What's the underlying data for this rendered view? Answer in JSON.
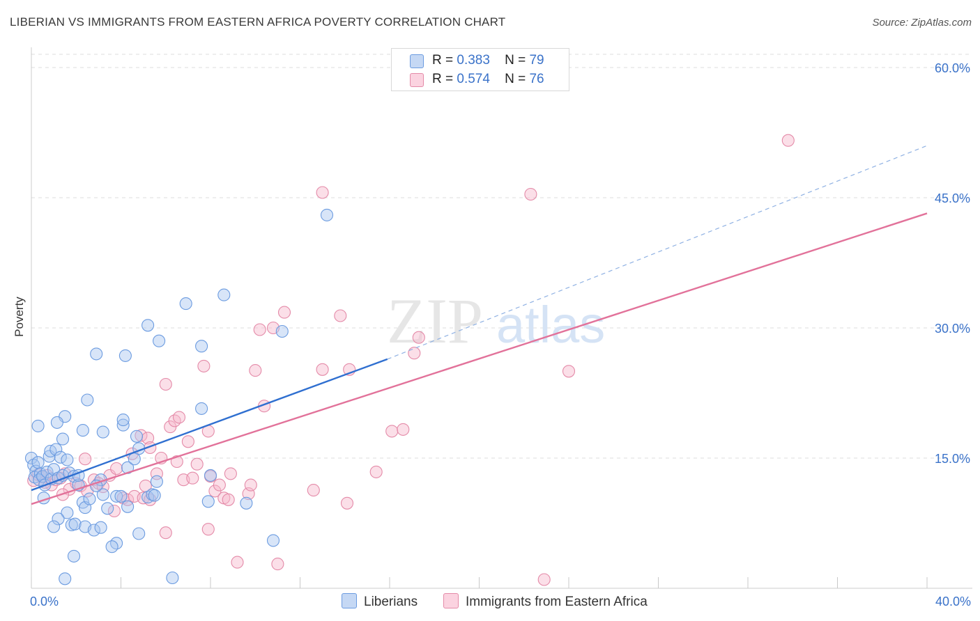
{
  "title": "LIBERIAN VS IMMIGRANTS FROM EASTERN AFRICA POVERTY CORRELATION CHART",
  "source": "Source: ZipAtlas.com",
  "watermark": {
    "zip": "ZIP",
    "atlas": "atlas"
  },
  "legend_top": [
    {
      "r_label": "R =",
      "r_value": "0.383",
      "n_label": "N =",
      "n_value": "79"
    },
    {
      "r_label": "R =",
      "r_value": "0.574",
      "n_label": "N =",
      "n_value": "76"
    }
  ],
  "colors": {
    "blue_fill": "#a9c6ef",
    "blue_stroke": "#6b9be0",
    "blue_line": "#2f6fd0",
    "pink_fill": "#f6b9cd",
    "pink_stroke": "#e48aa8",
    "pink_line": "#e2729a",
    "axis_label": "#3a72c9",
    "grid": "#dddddd"
  },
  "chart_data": {
    "type": "scatter",
    "title": "LIBERIAN VS IMMIGRANTS FROM EASTERN AFRICA POVERTY CORRELATION CHART",
    "xlabel": "",
    "ylabel": "Poverty",
    "xlim": [
      0,
      40
    ],
    "ylim": [
      0,
      60
    ],
    "x_tick_labels": [
      {
        "value": 0,
        "label": "0.0%"
      },
      {
        "value": 40,
        "label": "40.0%"
      }
    ],
    "y_tick_labels": [
      {
        "value": 15,
        "label": "15.0%"
      },
      {
        "value": 30,
        "label": "30.0%"
      },
      {
        "value": 45,
        "label": "45.0%"
      },
      {
        "value": 60,
        "label": "60.0%"
      }
    ],
    "series": [
      {
        "name": "Liberians",
        "r": 0.383,
        "n": 79,
        "trend": {
          "x0": 0,
          "y0": 11.3,
          "x1": 15.9,
          "y1": 26.4,
          "dashed_to_x": 40,
          "dashed_to_y": 51.0
        },
        "points": [
          [
            0.0,
            15.0
          ],
          [
            0.1,
            14.2
          ],
          [
            0.2,
            13.5
          ],
          [
            0.15,
            12.8
          ],
          [
            0.3,
            14.5
          ],
          [
            0.4,
            13.2
          ],
          [
            0.35,
            12.5
          ],
          [
            0.5,
            12.9
          ],
          [
            0.6,
            11.9
          ],
          [
            0.55,
            10.4
          ],
          [
            0.7,
            13.4
          ],
          [
            0.8,
            15.2
          ],
          [
            0.85,
            15.8
          ],
          [
            0.9,
            12.6
          ],
          [
            1.0,
            13.7
          ],
          [
            1.1,
            16.0
          ],
          [
            1.2,
            12.7
          ],
          [
            1.3,
            15.1
          ],
          [
            1.4,
            13.0
          ],
          [
            1.6,
            14.8
          ],
          [
            1.7,
            13.3
          ],
          [
            1.9,
            12.9
          ],
          [
            2.1,
            11.9
          ],
          [
            1.5,
            19.8
          ],
          [
            1.15,
            19.1
          ],
          [
            0.3,
            18.7
          ],
          [
            1.4,
            17.2
          ],
          [
            2.3,
            18.2
          ],
          [
            2.5,
            21.7
          ],
          [
            3.2,
            18.0
          ],
          [
            2.9,
            27.0
          ],
          [
            4.2,
            26.8
          ],
          [
            5.2,
            30.3
          ],
          [
            5.7,
            28.5
          ],
          [
            6.9,
            32.8
          ],
          [
            7.6,
            27.9
          ],
          [
            8.6,
            33.8
          ],
          [
            11.2,
            29.6
          ],
          [
            13.2,
            43.0
          ],
          [
            3.2,
            10.8
          ],
          [
            3.8,
            10.6
          ],
          [
            4.0,
            10.6
          ],
          [
            4.3,
            9.4
          ],
          [
            5.2,
            10.5
          ],
          [
            5.4,
            10.8
          ],
          [
            5.5,
            10.7
          ],
          [
            5.6,
            12.3
          ],
          [
            2.3,
            9.9
          ],
          [
            2.4,
            9.3
          ],
          [
            2.6,
            10.3
          ],
          [
            3.4,
            9.2
          ],
          [
            1.6,
            8.7
          ],
          [
            1.2,
            8.0
          ],
          [
            1.0,
            7.1
          ],
          [
            1.8,
            7.3
          ],
          [
            1.95,
            7.4
          ],
          [
            2.4,
            7.1
          ],
          [
            2.8,
            6.7
          ],
          [
            3.1,
            7.0
          ],
          [
            3.8,
            5.2
          ],
          [
            3.6,
            4.8
          ],
          [
            4.8,
            6.3
          ],
          [
            1.9,
            3.7
          ],
          [
            1.5,
            1.1
          ],
          [
            6.3,
            1.2
          ],
          [
            10.8,
            5.5
          ],
          [
            7.9,
            10.0
          ],
          [
            9.6,
            9.8
          ],
          [
            8.0,
            13.0
          ],
          [
            4.3,
            13.9
          ],
          [
            4.8,
            16.1
          ],
          [
            4.6,
            14.9
          ],
          [
            4.1,
            18.8
          ],
          [
            4.1,
            19.4
          ],
          [
            7.6,
            20.7
          ],
          [
            2.1,
            13.0
          ],
          [
            3.1,
            12.5
          ],
          [
            2.9,
            11.8
          ],
          [
            4.7,
            17.5
          ]
        ]
      },
      {
        "name": "Immigrants from Eastern Africa",
        "r": 0.574,
        "n": 76,
        "trend": {
          "x0": 0,
          "y0": 9.7,
          "x1": 40,
          "y1": 43.2
        },
        "points": [
          [
            0.1,
            12.4
          ],
          [
            0.3,
            13.1
          ],
          [
            0.5,
            12.8
          ],
          [
            0.7,
            13.0
          ],
          [
            0.9,
            11.9
          ],
          [
            1.1,
            12.5
          ],
          [
            1.3,
            12.7
          ],
          [
            1.5,
            13.2
          ],
          [
            1.7,
            11.4
          ],
          [
            2.0,
            12.1
          ],
          [
            2.2,
            11.8
          ],
          [
            2.5,
            11.2
          ],
          [
            2.8,
            12.5
          ],
          [
            3.0,
            12.1
          ],
          [
            3.2,
            11.7
          ],
          [
            3.5,
            13.0
          ],
          [
            3.8,
            13.8
          ],
          [
            4.1,
            10.4
          ],
          [
            4.3,
            10.2
          ],
          [
            4.6,
            10.6
          ],
          [
            4.9,
            17.6
          ],
          [
            5.0,
            10.4
          ],
          [
            5.3,
            10.2
          ],
          [
            5.2,
            17.3
          ],
          [
            5.3,
            16.2
          ],
          [
            5.6,
            13.2
          ],
          [
            5.8,
            15.0
          ],
          [
            6.0,
            23.5
          ],
          [
            6.2,
            18.6
          ],
          [
            6.4,
            19.3
          ],
          [
            6.6,
            19.7
          ],
          [
            6.8,
            12.5
          ],
          [
            7.0,
            16.9
          ],
          [
            7.2,
            12.7
          ],
          [
            7.4,
            14.3
          ],
          [
            7.7,
            25.6
          ],
          [
            7.9,
            18.1
          ],
          [
            8.0,
            12.9
          ],
          [
            8.2,
            11.2
          ],
          [
            8.4,
            11.9
          ],
          [
            8.6,
            10.4
          ],
          [
            8.8,
            10.2
          ],
          [
            8.9,
            13.2
          ],
          [
            9.2,
            3.0
          ],
          [
            9.7,
            10.9
          ],
          [
            9.8,
            11.9
          ],
          [
            10.0,
            25.1
          ],
          [
            10.2,
            29.8
          ],
          [
            10.4,
            21.0
          ],
          [
            10.8,
            30.0
          ],
          [
            11.0,
            2.8
          ],
          [
            11.3,
            31.8
          ],
          [
            12.6,
            11.3
          ],
          [
            13.0,
            45.6
          ],
          [
            13.0,
            25.2
          ],
          [
            13.8,
            31.4
          ],
          [
            14.2,
            25.2
          ],
          [
            14.1,
            9.8
          ],
          [
            15.4,
            13.4
          ],
          [
            16.1,
            18.1
          ],
          [
            16.6,
            18.3
          ],
          [
            17.1,
            27.1
          ],
          [
            17.3,
            28.9
          ],
          [
            22.3,
            45.4
          ],
          [
            22.9,
            1.0
          ],
          [
            24.0,
            25.0
          ],
          [
            33.8,
            51.6
          ],
          [
            6.0,
            6.4
          ],
          [
            7.9,
            6.8
          ],
          [
            0.6,
            12.2
          ],
          [
            1.4,
            10.8
          ],
          [
            2.4,
            14.9
          ],
          [
            3.7,
            8.9
          ],
          [
            4.5,
            15.5
          ],
          [
            5.1,
            11.8
          ],
          [
            6.5,
            14.6
          ]
        ]
      }
    ]
  },
  "bottom_legend": [
    {
      "label": "Liberians"
    },
    {
      "label": "Immigrants from Eastern Africa"
    }
  ]
}
